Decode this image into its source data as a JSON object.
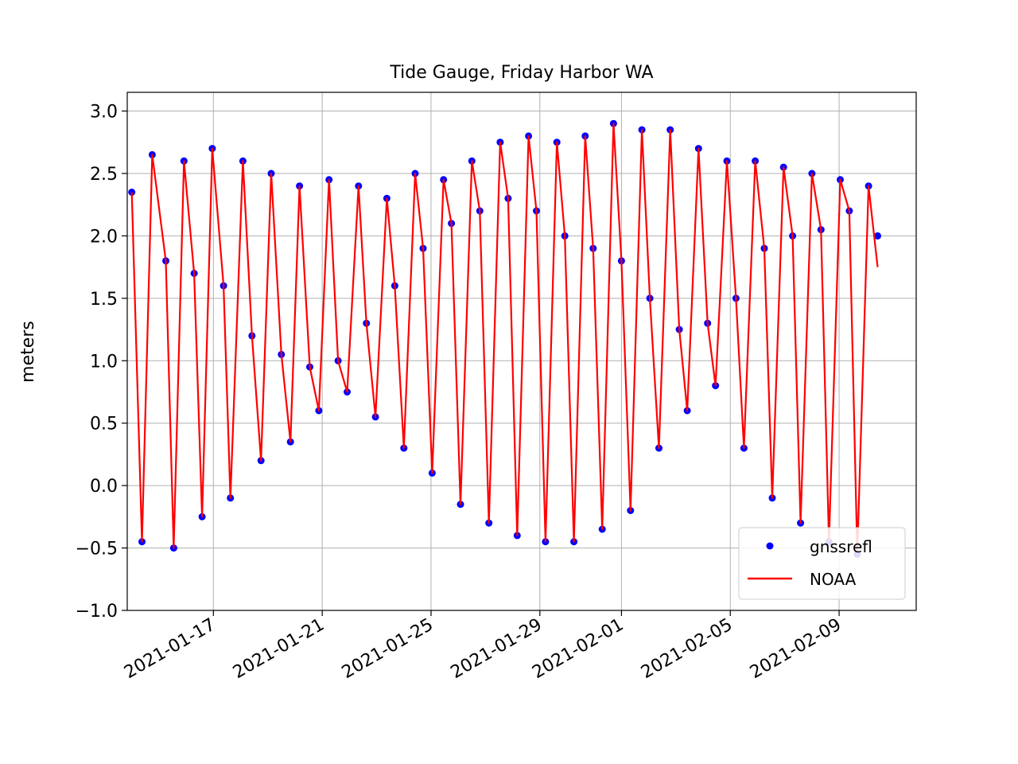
{
  "chart_data": {
    "type": "line",
    "title": "Tide Gauge, Friday Harbor WA",
    "xlabel": "",
    "ylabel": "meters",
    "x_type": "date",
    "xlim": [
      "2021-01-13T20:00",
      "2021-02-11T20:00"
    ],
    "ylim": [
      -1.0,
      3.15
    ],
    "x_ticks": [
      "2021-01-17",
      "2021-01-21",
      "2021-01-25",
      "2021-01-29",
      "2021-02-01",
      "2021-02-05",
      "2021-02-09"
    ],
    "y_ticks": [
      -1.0,
      -0.5,
      0.0,
      0.5,
      1.0,
      1.5,
      2.0,
      2.5,
      3.0
    ],
    "y_tick_labels": [
      "−1.0",
      "−0.5",
      "0.0",
      "0.5",
      "1.0",
      "1.5",
      "2.0",
      "2.5",
      "3.0"
    ],
    "grid": true,
    "legend_position": "lower-right",
    "series": [
      {
        "name": "gnssrefl",
        "style": "points",
        "color": "#0000ff",
        "x": [
          "2021-01-14T00:00",
          "2021-01-14T09:00",
          "2021-01-14T18:00",
          "2021-01-15T06:00",
          "2021-01-15T13:00",
          "2021-01-15T22:00",
          "2021-01-16T07:00",
          "2021-01-16T14:00",
          "2021-01-16T23:00",
          "2021-01-17T09:00",
          "2021-01-17T15:00",
          "2021-01-18T02:00",
          "2021-01-18T10:00",
          "2021-01-18T18:00",
          "2021-01-19T03:00",
          "2021-01-19T12:00",
          "2021-01-19T20:00",
          "2021-01-20T04:00",
          "2021-01-20T13:00",
          "2021-01-20T21:00",
          "2021-01-21T06:00",
          "2021-01-21T14:00",
          "2021-01-21T22:00",
          "2021-01-22T08:00",
          "2021-01-22T15:00",
          "2021-01-22T23:00",
          "2021-01-23T09:00",
          "2021-01-23T16:00",
          "2021-01-24T00:00",
          "2021-01-24T10:00",
          "2021-01-24T17:00",
          "2021-01-25T01:00",
          "2021-01-25T11:00",
          "2021-01-25T18:00",
          "2021-01-26T02:00",
          "2021-01-26T12:00",
          "2021-01-26T19:00",
          "2021-01-27T03:00",
          "2021-01-27T13:00",
          "2021-01-27T20:00",
          "2021-01-28T04:00",
          "2021-01-28T14:00",
          "2021-01-28T21:00",
          "2021-01-29T05:00",
          "2021-01-29T15:00",
          "2021-01-29T22:00",
          "2021-01-30T06:00",
          "2021-01-30T16:00",
          "2021-01-30T23:00",
          "2021-01-31T07:00",
          "2021-01-31T17:00",
          "2021-02-01T00:00",
          "2021-02-01T08:00",
          "2021-02-01T18:00",
          "2021-02-02T01:00",
          "2021-02-02T09:00",
          "2021-02-02T19:00",
          "2021-02-03T03:00",
          "2021-02-03T10:00",
          "2021-02-03T20:00",
          "2021-02-04T04:00",
          "2021-02-04T11:00",
          "2021-02-04T21:00",
          "2021-02-05T05:00",
          "2021-02-05T12:00",
          "2021-02-05T22:00",
          "2021-02-06T06:00",
          "2021-02-06T13:00",
          "2021-02-06T23:00",
          "2021-02-07T07:00",
          "2021-02-07T14:00",
          "2021-02-08T00:00",
          "2021-02-08T08:00",
          "2021-02-08T15:00",
          "2021-02-09T01:00",
          "2021-02-09T09:00",
          "2021-02-09T16:00",
          "2021-02-10T02:00",
          "2021-02-10T10:00"
        ],
        "y": [
          2.35,
          -0.45,
          2.65,
          1.8,
          -0.5,
          2.6,
          1.7,
          -0.25,
          2.7,
          1.6,
          -0.1,
          2.6,
          1.2,
          0.2,
          2.5,
          1.05,
          0.35,
          2.4,
          0.95,
          0.6,
          2.45,
          1.0,
          0.75,
          2.4,
          1.3,
          0.55,
          2.3,
          1.6,
          0.3,
          2.5,
          1.9,
          0.1,
          2.45,
          2.1,
          -0.15,
          2.6,
          2.2,
          -0.3,
          2.75,
          2.3,
          -0.4,
          2.8,
          2.2,
          -0.45,
          2.75,
          2.0,
          -0.45,
          2.8,
          1.9,
          -0.35,
          2.9,
          1.8,
          -0.2,
          2.85,
          1.5,
          0.3,
          2.85,
          1.25,
          0.6,
          2.7,
          1.3,
          0.8,
          2.6,
          1.5,
          0.3,
          2.6,
          1.9,
          -0.1,
          2.55,
          2.0,
          -0.3,
          2.5,
          2.05,
          -0.45,
          2.45,
          2.2,
          -0.55,
          2.4,
          2.0
        ]
      },
      {
        "name": "NOAA",
        "style": "line",
        "color": "#ff0000",
        "x": [
          "2021-01-14T00:00",
          "2021-01-14T09:00",
          "2021-01-14T18:00",
          "2021-01-15T06:00",
          "2021-01-15T13:00",
          "2021-01-15T22:00",
          "2021-01-16T07:00",
          "2021-01-16T14:00",
          "2021-01-16T23:00",
          "2021-01-17T09:00",
          "2021-01-17T15:00",
          "2021-01-18T02:00",
          "2021-01-18T10:00",
          "2021-01-18T18:00",
          "2021-01-19T03:00",
          "2021-01-19T12:00",
          "2021-01-19T20:00",
          "2021-01-20T04:00",
          "2021-01-20T13:00",
          "2021-01-20T21:00",
          "2021-01-21T06:00",
          "2021-01-21T14:00",
          "2021-01-21T22:00",
          "2021-01-22T08:00",
          "2021-01-22T15:00",
          "2021-01-22T23:00",
          "2021-01-23T09:00",
          "2021-01-23T16:00",
          "2021-01-24T00:00",
          "2021-01-24T10:00",
          "2021-01-24T17:00",
          "2021-01-25T01:00",
          "2021-01-25T11:00",
          "2021-01-25T18:00",
          "2021-01-26T02:00",
          "2021-01-26T12:00",
          "2021-01-26T19:00",
          "2021-01-27T03:00",
          "2021-01-27T13:00",
          "2021-01-27T20:00",
          "2021-01-28T04:00",
          "2021-01-28T14:00",
          "2021-01-28T21:00",
          "2021-01-29T05:00",
          "2021-01-29T15:00",
          "2021-01-29T22:00",
          "2021-01-30T06:00",
          "2021-01-30T16:00",
          "2021-01-30T23:00",
          "2021-01-31T07:00",
          "2021-01-31T17:00",
          "2021-02-01T00:00",
          "2021-02-01T08:00",
          "2021-02-01T18:00",
          "2021-02-02T01:00",
          "2021-02-02T09:00",
          "2021-02-02T19:00",
          "2021-02-03T03:00",
          "2021-02-03T10:00",
          "2021-02-03T20:00",
          "2021-02-04T04:00",
          "2021-02-04T11:00",
          "2021-02-04T21:00",
          "2021-02-05T05:00",
          "2021-02-05T12:00",
          "2021-02-05T22:00",
          "2021-02-06T06:00",
          "2021-02-06T13:00",
          "2021-02-06T23:00",
          "2021-02-07T07:00",
          "2021-02-07T14:00",
          "2021-02-08T00:00",
          "2021-02-08T08:00",
          "2021-02-08T15:00",
          "2021-02-09T01:00",
          "2021-02-09T09:00",
          "2021-02-09T16:00",
          "2021-02-10T02:00",
          "2021-02-10T10:00"
        ],
        "y": [
          2.35,
          -0.45,
          2.65,
          1.8,
          -0.5,
          2.6,
          1.7,
          -0.25,
          2.7,
          1.6,
          -0.1,
          2.6,
          1.2,
          0.2,
          2.5,
          1.05,
          0.35,
          2.4,
          0.95,
          0.6,
          2.45,
          1.0,
          0.75,
          2.4,
          1.3,
          0.55,
          2.3,
          1.6,
          0.3,
          2.5,
          1.9,
          0.1,
          2.45,
          2.1,
          -0.15,
          2.6,
          2.2,
          -0.3,
          2.75,
          2.3,
          -0.4,
          2.8,
          2.2,
          -0.45,
          2.75,
          2.0,
          -0.45,
          2.8,
          1.9,
          -0.35,
          2.9,
          1.8,
          -0.2,
          2.85,
          1.5,
          0.3,
          2.85,
          1.25,
          0.6,
          2.7,
          1.3,
          0.8,
          2.6,
          1.5,
          0.3,
          2.6,
          1.9,
          -0.1,
          2.55,
          2.0,
          -0.3,
          2.5,
          2.05,
          -0.45,
          2.45,
          2.2,
          -0.55,
          2.4,
          1.75
        ]
      }
    ]
  }
}
